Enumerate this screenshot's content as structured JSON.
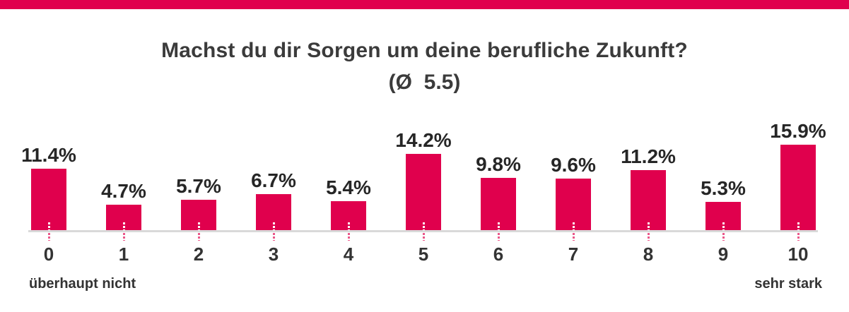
{
  "page": {
    "accent_color": "#E0004D",
    "background_color": "#FFFFFF"
  },
  "chart_data": {
    "type": "bar",
    "title": "Machst du dir Sorgen um deine berufliche Zukunft?",
    "subtitle": "(Ø  5.5)",
    "average": 5.5,
    "categories": [
      "0",
      "1",
      "2",
      "3",
      "4",
      "5",
      "6",
      "7",
      "8",
      "9",
      "10"
    ],
    "values": [
      11.4,
      4.7,
      5.7,
      6.7,
      5.4,
      14.2,
      9.8,
      9.6,
      11.2,
      5.3,
      15.9
    ],
    "value_labels": [
      "11.4%",
      "4.7%",
      "5.7%",
      "6.7%",
      "5.4%",
      "14.2%",
      "9.8%",
      "9.6%",
      "11.2%",
      "5.3%",
      "15.9%"
    ],
    "axis_min_label": "überhaupt nicht",
    "axis_max_label": "sehr stark",
    "bar_color": "#E0004D",
    "axis_line_color": "#D9D9D9",
    "xlabel": "",
    "ylabel": "",
    "ylim": [
      0,
      16
    ],
    "grid": false,
    "legend": false,
    "value_labels_shown": true
  }
}
